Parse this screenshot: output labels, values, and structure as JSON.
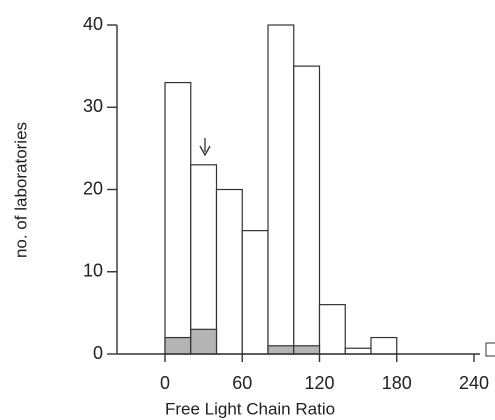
{
  "chart_data": {
    "type": "histogram",
    "xlabel": "Free Light Chain Ratio",
    "ylabel": "no. of laboratories",
    "bins": [
      0,
      20,
      40,
      60,
      80,
      100,
      120,
      140,
      160,
      180,
      200,
      220,
      240
    ],
    "series": [
      {
        "color": "#ffffff",
        "values": [
          33,
          23,
          20,
          15,
          40,
          35,
          6,
          0.7,
          2,
          0,
          0,
          0
        ]
      },
      {
        "color": "#b4b4b4",
        "values": [
          2,
          3,
          0,
          0,
          1,
          1,
          0,
          0,
          0,
          0,
          0,
          0
        ]
      }
    ],
    "xlim": [
      0,
      240
    ],
    "xticks": [
      0,
      60,
      120,
      180,
      240
    ],
    "ylim": [
      0,
      40
    ],
    "yticks": [
      0,
      10,
      20,
      30,
      40
    ]
  }
}
